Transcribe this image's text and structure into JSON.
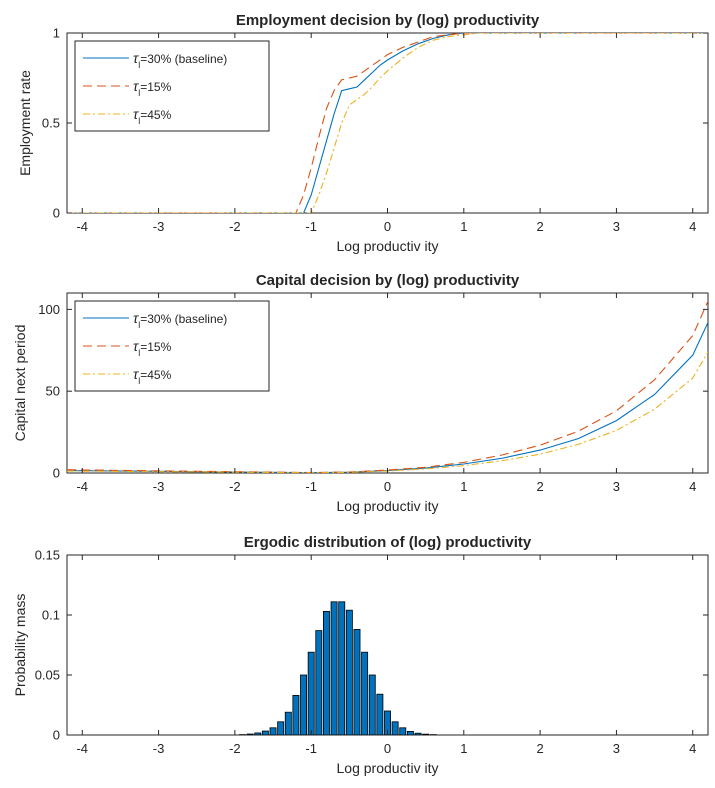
{
  "chart_data": [
    {
      "type": "line",
      "title": "Employment decision by (log) productivity",
      "xlabel": "Log productiv ity",
      "ylabel": "Employment rate",
      "xlim": [
        -4.2,
        4.2
      ],
      "ylim": [
        0,
        1
      ],
      "xticks": [
        -4,
        -3,
        -2,
        -1,
        0,
        1,
        2,
        3,
        4
      ],
      "yticks": [
        0,
        0.5,
        1
      ],
      "legend_position": "top-left",
      "grid": false,
      "series": [
        {
          "name": "τ_l=30% (baseline)",
          "legend_main": "τ",
          "legend_sub": "l",
          "legend_rest": "=30% (baseline)",
          "color": "#0072BD",
          "dash": "solid",
          "x": [
            -4.2,
            -1.1,
            -1.0,
            -0.9,
            -0.8,
            -0.7,
            -0.6,
            -0.5,
            -0.4,
            -0.3,
            -0.2,
            -0.1,
            0.0,
            0.2,
            0.4,
            0.6,
            0.8,
            1.0,
            1.2,
            4.2
          ],
          "y": [
            0,
            0,
            0.1,
            0.25,
            0.4,
            0.55,
            0.68,
            0.69,
            0.7,
            0.74,
            0.78,
            0.82,
            0.85,
            0.9,
            0.94,
            0.97,
            0.99,
            1.0,
            1.0,
            1.0
          ]
        },
        {
          "name": "τ_l=15%",
          "legend_main": "τ",
          "legend_sub": "l",
          "legend_rest": "=15%",
          "color": "#D95319",
          "dash": "dashed",
          "x": [
            -4.2,
            -1.2,
            -1.1,
            -1.0,
            -0.9,
            -0.8,
            -0.7,
            -0.6,
            -0.5,
            -0.4,
            -0.3,
            -0.2,
            0.0,
            0.2,
            0.4,
            0.6,
            0.8,
            1.0,
            1.2,
            4.2
          ],
          "y": [
            0,
            0,
            0.1,
            0.25,
            0.42,
            0.58,
            0.68,
            0.74,
            0.75,
            0.76,
            0.79,
            0.82,
            0.88,
            0.92,
            0.95,
            0.98,
            0.99,
            1.0,
            1.0,
            1.0
          ]
        },
        {
          "name": "τ_l=45%",
          "legend_main": "τ",
          "legend_sub": "l",
          "legend_rest": "=45%",
          "color": "#EDB120",
          "dash": "dashdot",
          "x": [
            -4.2,
            -1.0,
            -0.9,
            -0.8,
            -0.7,
            -0.6,
            -0.5,
            -0.4,
            -0.3,
            -0.2,
            -0.1,
            0.0,
            0.2,
            0.4,
            0.6,
            0.8,
            1.0,
            1.2,
            1.4,
            4.2
          ],
          "y": [
            0,
            0,
            0.1,
            0.22,
            0.36,
            0.5,
            0.6,
            0.63,
            0.66,
            0.7,
            0.75,
            0.79,
            0.86,
            0.92,
            0.96,
            0.98,
            0.99,
            1.0,
            1.0,
            1.0
          ]
        }
      ]
    },
    {
      "type": "line",
      "title": "Capital decision by (log) productivity",
      "xlabel": "Log productiv ity",
      "ylabel": "Capital next period",
      "xlim": [
        -4.2,
        4.2
      ],
      "ylim": [
        0,
        110
      ],
      "xticks": [
        -4,
        -3,
        -2,
        -1,
        0,
        1,
        2,
        3,
        4
      ],
      "yticks": [
        0,
        50,
        100
      ],
      "legend_position": "top-left",
      "grid": false,
      "series": [
        {
          "name": "τ_l=30% (baseline)",
          "legend_main": "τ",
          "legend_sub": "l",
          "legend_rest": "=30% (baseline)",
          "color": "#0072BD",
          "dash": "solid",
          "x": [
            -4.2,
            -3,
            -2,
            -1,
            -0.5,
            0,
            0.5,
            1,
            1.5,
            2,
            2.5,
            3,
            3.5,
            4,
            4.2
          ],
          "y": [
            1.5,
            1.0,
            0.6,
            0.2,
            0.5,
            1.5,
            3.0,
            5.5,
            9.0,
            14.0,
            21.0,
            32.0,
            48.0,
            72.0,
            92.0
          ]
        },
        {
          "name": "τ_l=15%",
          "legend_main": "τ",
          "legend_sub": "l",
          "legend_rest": "=15%",
          "color": "#D95319",
          "dash": "dashed",
          "x": [
            -4.2,
            -3,
            -2,
            -1,
            -0.5,
            0,
            0.5,
            1,
            1.5,
            2,
            2.5,
            3,
            3.5,
            4,
            4.2
          ],
          "y": [
            2.0,
            1.3,
            0.8,
            0.3,
            0.6,
            1.8,
            3.5,
            6.5,
            11.0,
            17.0,
            25.5,
            38.0,
            57.0,
            84.0,
            105.0
          ]
        },
        {
          "name": "τ_l=45%",
          "legend_main": "τ",
          "legend_sub": "l",
          "legend_rest": "=45%",
          "color": "#EDB120",
          "dash": "dashdot",
          "x": [
            -4.2,
            -3,
            -2,
            -1,
            -0.5,
            0,
            0.5,
            1,
            1.5,
            2,
            2.5,
            3,
            3.5,
            4,
            4.2
          ],
          "y": [
            1.2,
            0.8,
            0.5,
            0.15,
            0.4,
            1.2,
            2.5,
            4.5,
            7.5,
            11.5,
            17.5,
            26.0,
            39.0,
            58.0,
            74.0
          ]
        }
      ]
    },
    {
      "type": "bar",
      "title": "Ergodic distribution of (log) productivity",
      "xlabel": "Log productiv ity",
      "ylabel": "Probability mass",
      "xlim": [
        -4.2,
        4.2
      ],
      "ylim": [
        0,
        0.15
      ],
      "xticks": [
        -4,
        -3,
        -2,
        -1,
        0,
        1,
        2,
        3,
        4
      ],
      "yticks": [
        0,
        0.05,
        0.1,
        0.15
      ],
      "bar_color": "#0072BD",
      "x": [
        -4.1,
        -4.0,
        -3.9,
        -3.8,
        -3.7,
        -3.6,
        -3.5,
        -3.4,
        -3.3,
        -3.2,
        -3.1,
        -3.0,
        -2.9,
        -2.8,
        -2.7,
        -2.6,
        -2.5,
        -2.4,
        -2.3,
        -2.2,
        -2.1,
        -2.0,
        -1.9,
        -1.8,
        -1.7,
        -1.6,
        -1.5,
        -1.4,
        -1.3,
        -1.2,
        -1.1,
        -1.0,
        -0.9,
        -0.8,
        -0.7,
        -0.6,
        -0.5,
        -0.4,
        -0.3,
        -0.2,
        -0.1,
        0.0,
        0.1,
        0.2,
        0.3,
        0.4,
        0.5,
        0.6,
        0.7,
        0.8,
        0.9,
        1.0,
        1.1,
        1.2,
        1.3,
        1.4,
        1.5,
        1.6,
        1.7,
        1.8,
        1.9,
        2.0,
        2.1,
        2.2,
        2.3,
        2.4,
        2.5,
        2.6,
        2.7,
        2.8,
        2.9,
        3.0,
        3.1,
        3.2,
        3.3,
        3.4,
        3.5,
        3.6,
        3.7,
        3.8,
        3.9,
        4.0,
        4.1
      ],
      "values": [
        0,
        0,
        0,
        0,
        0,
        0,
        0,
        0,
        0,
        0,
        0,
        0,
        0,
        0,
        0,
        0,
        0,
        0,
        0,
        0,
        0,
        0,
        0.0003,
        0.0008,
        0.0017,
        0.0033,
        0.006,
        0.011,
        0.019,
        0.033,
        0.05,
        0.069,
        0.087,
        0.103,
        0.111,
        0.111,
        0.104,
        0.088,
        0.069,
        0.05,
        0.034,
        0.02,
        0.011,
        0.006,
        0.003,
        0.0015,
        0.0007,
        0.0003,
        0,
        0,
        0,
        0,
        0,
        0,
        0,
        0,
        0,
        0,
        0,
        0,
        0,
        0,
        0,
        0,
        0,
        0,
        0,
        0,
        0,
        0,
        0,
        0,
        0,
        0,
        0,
        0,
        0,
        0,
        0,
        0,
        0,
        0,
        0
      ]
    }
  ]
}
